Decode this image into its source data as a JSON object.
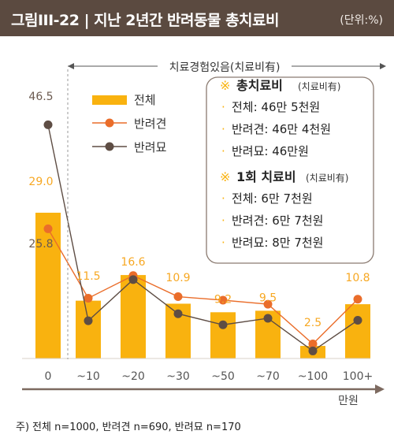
{
  "title": "그림III-22 | 지난 2년간 반려동물 총치료비",
  "unit": "(단위:%)",
  "footnote": {
    "prefix": "주)",
    "text": "전체 n=1000, 반려견 n=690, 반려묘 n=170"
  },
  "chart_data": {
    "type": "bar",
    "categories": [
      "0",
      "~10",
      "~20",
      "~30",
      "~50",
      "~70",
      "~100",
      "100+"
    ],
    "series": [
      {
        "name": "전체",
        "kind": "bar",
        "color": "#f9b20f",
        "values": [
          29.0,
          11.5,
          16.6,
          10.9,
          9.2,
          9.5,
          2.5,
          10.8
        ]
      },
      {
        "name": "반려견",
        "kind": "line",
        "color": "#ea6d2a",
        "values": [
          25.8,
          12.0,
          16.5,
          12.3,
          11.6,
          10.8,
          2.9,
          11.8
        ]
      },
      {
        "name": "반려묘",
        "kind": "line",
        "color": "#5e4d44",
        "values": [
          46.5,
          7.5,
          15.7,
          8.9,
          6.7,
          8.0,
          1.5,
          7.6
        ]
      }
    ],
    "data_labels": [
      {
        "series": "전체",
        "index": 0,
        "text": "29.0"
      },
      {
        "series": "반려견",
        "index": 0,
        "text": "25.8"
      },
      {
        "series": "반려묘",
        "index": 0,
        "text": "46.5"
      },
      {
        "series": "전체",
        "index": 1,
        "text": "11.5"
      },
      {
        "series": "전체",
        "index": 2,
        "text": "16.6"
      },
      {
        "series": "전체",
        "index": 3,
        "text": "10.9"
      },
      {
        "series": "전체",
        "index": 4,
        "text": "9.2"
      },
      {
        "series": "전체",
        "index": 5,
        "text": "9.5"
      },
      {
        "series": "전체",
        "index": 6,
        "text": "2.5"
      },
      {
        "series": "전체",
        "index": 7,
        "text": "10.8"
      }
    ],
    "xlabel": "만원",
    "ylabel": "",
    "ylim": [
      0,
      50
    ],
    "grid": false,
    "legend": "top-left",
    "bracket_label": "치료경험있음(치료비有)",
    "info_box": {
      "sections": [
        {
          "heading": "총치료비",
          "heading_sub": "(치료비有)",
          "items": [
            "전체: 46만 5천원",
            "반려견: 46만 4천원",
            "반려묘: 46만원"
          ]
        },
        {
          "heading": "1회 치료비",
          "heading_sub": "(치료비有)",
          "items": [
            "전체: 6만 7천원",
            "반려견: 6만 7천원",
            "반려묘: 8만 7천원"
          ]
        }
      ]
    }
  },
  "colors": {
    "header_bg": "#5b4a40",
    "accent": "#f9b20f",
    "label_orange": "#f7a823",
    "dog": "#ea6d2a",
    "cat": "#5e4d44",
    "axis": "#7d6a60"
  }
}
